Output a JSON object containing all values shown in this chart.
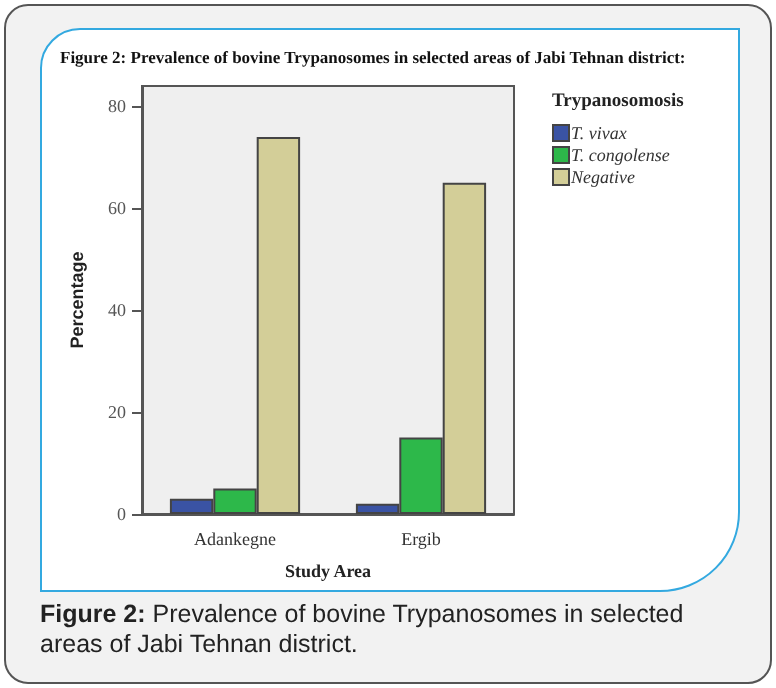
{
  "chart_data": {
    "type": "bar",
    "title": "Figure 2: Prevalence of bovine Trypanosomes in selected areas of Jabi Tehnan district:",
    "xlabel": "Study Area",
    "ylabel": "Percentage",
    "legend_title": "Trypanosomosis",
    "categories": [
      "Adankegne",
      "Ergib"
    ],
    "series": [
      {
        "name": "T. vivax",
        "color": "#3a53a4",
        "values": [
          3,
          2
        ]
      },
      {
        "name": "T. congolense",
        "color": "#2db84a",
        "values": [
          5,
          15
        ]
      },
      {
        "name": "Negative",
        "color": "#d3ce98",
        "values": [
          74,
          65
        ]
      }
    ],
    "ylim": [
      0,
      84
    ],
    "yticks": [
      0,
      20,
      40,
      60,
      80
    ],
    "grid": false,
    "legend": "right",
    "annotations": [
      "Figure 2: Prevalence of bovine Trypanosomes in selected areas of Jabi Tehnan district."
    ]
  }
}
